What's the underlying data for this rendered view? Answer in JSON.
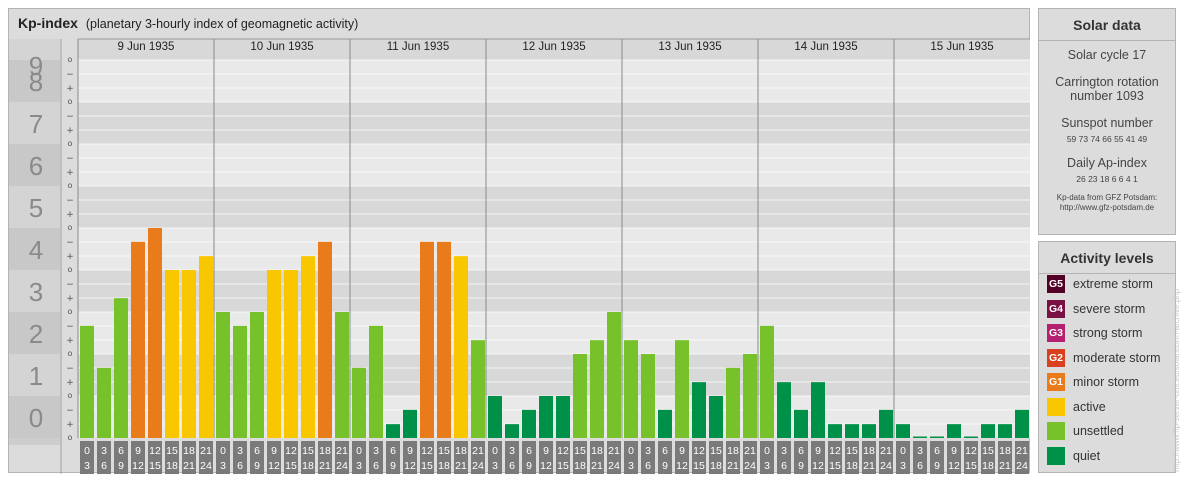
{
  "header": {
    "title": "Kp-index",
    "subtitle": "(planetary 3-hourly index of geomagnetic activity)"
  },
  "chart_data": {
    "type": "bar",
    "days": [
      "9 Jun 1935",
      "10 Jun 1935",
      "11 Jun 1935",
      "12 Jun 1935",
      "13 Jun 1935",
      "14 Jun 1935",
      "15 Jun 1935"
    ],
    "interval_labels": [
      [
        "0",
        "3"
      ],
      [
        "3",
        "6"
      ],
      [
        "6",
        "9"
      ],
      [
        "9",
        "12"
      ],
      [
        "12",
        "15"
      ],
      [
        "15",
        "18"
      ],
      [
        "18",
        "21"
      ],
      [
        "21",
        "24"
      ]
    ],
    "y_ticks": [
      "0",
      "1",
      "2",
      "3",
      "4",
      "5",
      "6",
      "7",
      "8",
      "9"
    ],
    "minor_ticks": [
      "o",
      "+",
      "−"
    ],
    "ylim": [
      0,
      9
    ],
    "values": [
      [
        2.67,
        1.67,
        3.33,
        4.67,
        5.0,
        4.0,
        4.0,
        4.33
      ],
      [
        3.0,
        2.67,
        3.0,
        4.0,
        4.0,
        4.33,
        4.67,
        3.0
      ],
      [
        1.67,
        2.67,
        0.33,
        0.67,
        4.67,
        4.67,
        4.33,
        2.33
      ],
      [
        1.0,
        0.33,
        0.67,
        1.0,
        1.0,
        2.0,
        2.33,
        3.0
      ],
      [
        2.33,
        2.0,
        0.67,
        2.33,
        1.33,
        1.0,
        1.67,
        2.0
      ],
      [
        2.67,
        1.33,
        0.67,
        1.33,
        0.33,
        0.33,
        0.33,
        0.67
      ],
      [
        0.33,
        0.0,
        0.0,
        0.33,
        0.0,
        0.33,
        0.33,
        0.67
      ]
    ],
    "colors": {
      "quiet": "#009148",
      "unsettled": "#77c22b",
      "active": "#f9c700",
      "minor": "#e97b1a",
      "moderate": "#d9411e",
      "strong": "#b51f6f",
      "severe": "#7b1045",
      "extreme": "#520025"
    }
  },
  "solar": {
    "title": "Solar data",
    "cycle": "Solar cycle 17",
    "carrington_line1": "Carrington rotation",
    "carrington_line2": "number 1093",
    "sunspot_title": "Sunspot number",
    "sunspot_values": "59 73 74 66 55 41 49",
    "ap_title": "Daily Ap-index",
    "ap_values": "26 23 18 6 6 4 1",
    "credit_line1": "Kp-data from GFZ Potsdam:",
    "credit_line2": "http://www.gfz-potsdam.de"
  },
  "activity": {
    "title": "Activity levels",
    "levels": [
      {
        "badge": "G5",
        "label": "extreme storm",
        "color": "#520025"
      },
      {
        "badge": "G4",
        "label": "severe storm",
        "color": "#7b1045"
      },
      {
        "badge": "G3",
        "label": "strong storm",
        "color": "#b51f6f"
      },
      {
        "badge": "G2",
        "label": "moderate storm",
        "color": "#d9411e"
      },
      {
        "badge": "G1",
        "label": "minor storm",
        "color": "#e97b1a"
      },
      {
        "badge": "",
        "label": "active",
        "color": "#f9c700"
      },
      {
        "badge": "",
        "label": "unsettled",
        "color": "#77c22b"
      },
      {
        "badge": "",
        "label": "quiet",
        "color": "#009148"
      }
    ]
  },
  "watermark": "http://www.ftp-server-urls.eu/solarstorm-archive.php"
}
